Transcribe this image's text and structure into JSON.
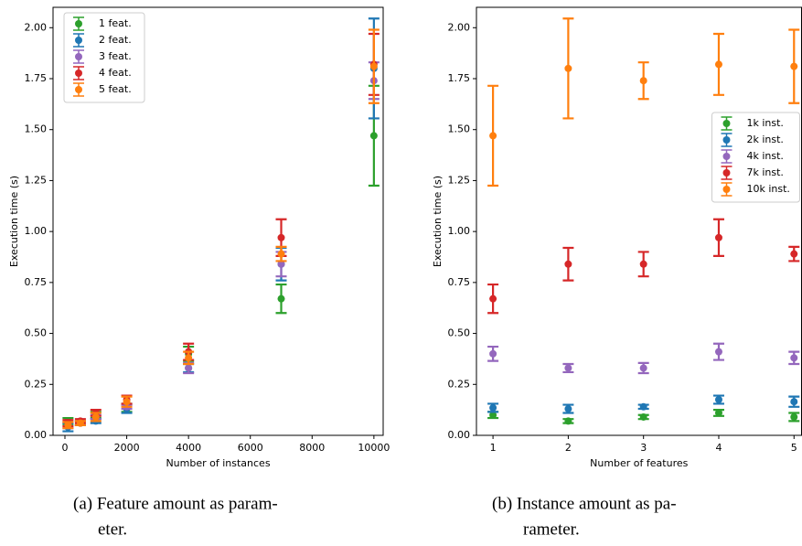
{
  "charts": [
    {
      "chart_data": {
        "type": "errorbar",
        "xlabel": "Number of instances",
        "ylabel": "Execution time (s)",
        "x": [
          100,
          500,
          1000,
          2000,
          4000,
          7000,
          10000
        ],
        "xlim": [
          -385,
          10300
        ],
        "xticks": [
          0,
          2000,
          4000,
          6000,
          8000,
          10000
        ],
        "ylim": [
          0,
          2.1
        ],
        "yticks": [
          {
            "value": 0,
            "label": "0.00"
          },
          {
            "value": 0.25,
            "label": "0.25"
          },
          {
            "value": 0.5,
            "label": "0.50"
          },
          {
            "value": 0.75,
            "label": "0.75"
          },
          {
            "value": 1,
            "label": "1.00"
          },
          {
            "value": 1.25,
            "label": "1.25"
          },
          {
            "value": 1.5,
            "label": "1.50"
          },
          {
            "value": 1.75,
            "label": "1.75"
          },
          {
            "value": 2,
            "label": "2.00"
          }
        ],
        "legend": "upper left",
        "series": [
          {
            "name": "1 feat.",
            "color": "#2ca02c",
            "values": [
              0.07,
              0.06,
              0.1,
              0.135,
              0.4,
              0.67,
              1.47
            ],
            "errors": [
              0.015,
              0.01,
              0.015,
              0.02,
              0.035,
              0.07,
              0.245
            ]
          },
          {
            "name": "2 feat.",
            "color": "#1f77b4",
            "values": [
              0.04,
              0.06,
              0.07,
              0.13,
              0.33,
              0.84,
              1.8
            ],
            "errors": [
              0.02,
              0.01,
              0.01,
              0.02,
              0.02,
              0.08,
              0.245
            ]
          },
          {
            "name": "3 feat.",
            "color": "#9467bd",
            "values": [
              0.05,
              0.06,
              0.09,
              0.14,
              0.33,
              0.84,
              1.74
            ],
            "errors": [
              0.015,
              0.01,
              0.01,
              0.01,
              0.025,
              0.06,
              0.09
            ]
          },
          {
            "name": "4 feat.",
            "color": "#d62728",
            "values": [
              0.06,
              0.07,
              0.11,
              0.175,
              0.41,
              0.97,
              1.82
            ],
            "errors": [
              0.015,
              0.01,
              0.015,
              0.02,
              0.04,
              0.09,
              0.15
            ]
          },
          {
            "name": "5 feat.",
            "color": "#ff7f0e",
            "values": [
              0.05,
              0.06,
              0.09,
              0.165,
              0.38,
              0.89,
              1.81
            ],
            "errors": [
              0.015,
              0.01,
              0.02,
              0.025,
              0.03,
              0.035,
              0.18
            ]
          }
        ]
      },
      "caption": [
        "(a) Feature amount as param-",
        "eter."
      ]
    },
    {
      "chart_data": {
        "type": "errorbar",
        "xlabel": "Number of features",
        "ylabel": "Execution time (s)",
        "x": [
          1,
          2,
          3,
          4,
          5
        ],
        "xlim": [
          0.78,
          5.1
        ],
        "xticks": [
          1,
          2,
          3,
          4,
          5
        ],
        "ylim": [
          0,
          2.1
        ],
        "yticks": [
          {
            "value": 0,
            "label": "0.00"
          },
          {
            "value": 0.25,
            "label": "0.25"
          },
          {
            "value": 0.5,
            "label": "0.50"
          },
          {
            "value": 0.75,
            "label": "0.75"
          },
          {
            "value": 1,
            "label": "1.00"
          },
          {
            "value": 1.25,
            "label": "1.25"
          },
          {
            "value": 1.5,
            "label": "1.50"
          },
          {
            "value": 1.75,
            "label": "1.75"
          },
          {
            "value": 2,
            "label": "2.00"
          }
        ],
        "legend": "center right",
        "series": [
          {
            "name": "1k inst.",
            "color": "#2ca02c",
            "values": [
              0.1,
              0.07,
              0.09,
              0.11,
              0.09
            ],
            "errors": [
              0.015,
              0.01,
              0.01,
              0.015,
              0.02
            ]
          },
          {
            "name": "2k inst.",
            "color": "#1f77b4",
            "values": [
              0.135,
              0.13,
              0.14,
              0.175,
              0.165
            ],
            "errors": [
              0.02,
              0.02,
              0.01,
              0.02,
              0.025
            ]
          },
          {
            "name": "4k inst.",
            "color": "#9467bd",
            "values": [
              0.4,
              0.33,
              0.33,
              0.41,
              0.38
            ],
            "errors": [
              0.035,
              0.02,
              0.025,
              0.04,
              0.03
            ]
          },
          {
            "name": "7k inst.",
            "color": "#d62728",
            "values": [
              0.67,
              0.84,
              0.84,
              0.97,
              0.89
            ],
            "errors": [
              0.07,
              0.08,
              0.06,
              0.09,
              0.035
            ]
          },
          {
            "name": "10k inst.",
            "color": "#ff7f0e",
            "values": [
              1.47,
              1.8,
              1.74,
              1.82,
              1.81
            ],
            "errors": [
              0.245,
              0.245,
              0.09,
              0.15,
              0.18
            ]
          }
        ]
      },
      "caption": [
        "(b) Instance  amount  as  pa-",
        "rameter."
      ]
    }
  ]
}
